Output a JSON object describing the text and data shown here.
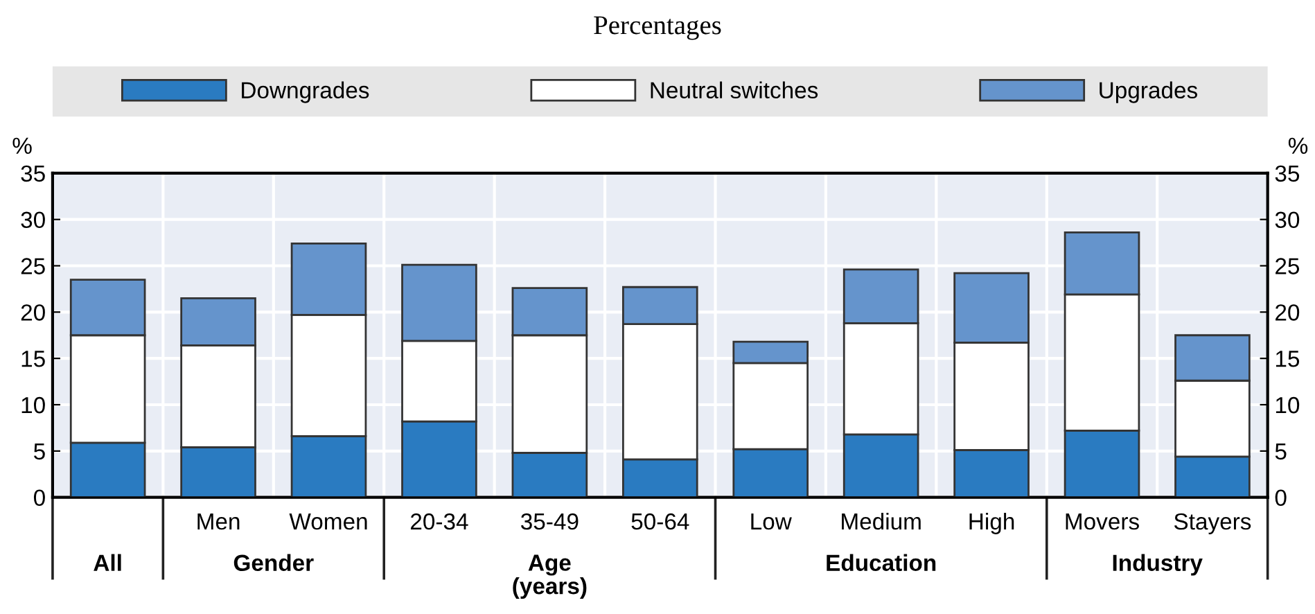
{
  "chart_data": {
    "type": "bar",
    "title": "Percentages",
    "stacked": true,
    "categories": [
      null,
      "Men",
      "Women",
      "20-34",
      "35-49",
      "50-64",
      "Low",
      "Medium",
      "High",
      "Movers",
      "Stayers"
    ],
    "series": [
      {
        "name": "Downgrades",
        "color": "#2a7bc1",
        "values": [
          5.9,
          5.4,
          6.6,
          8.2,
          4.8,
          4.1,
          5.2,
          6.8,
          5.1,
          7.2,
          4.4
        ]
      },
      {
        "name": "Neutral switches",
        "color": "#ffffff",
        "values": [
          11.6,
          11.0,
          13.1,
          8.7,
          12.7,
          14.6,
          9.3,
          12.0,
          11.6,
          14.7,
          8.2
        ]
      },
      {
        "name": "Upgrades",
        "color": "#6594cc",
        "values": [
          6.0,
          5.1,
          7.7,
          8.2,
          5.1,
          4.0,
          2.3,
          5.8,
          7.5,
          6.7,
          4.9
        ]
      }
    ],
    "annotations": [
      "All",
      "Gender",
      "Age\n(years)",
      "Education",
      "Industry"
    ],
    "ylabel": "%",
    "y2label": "%",
    "ylim": [
      0,
      35
    ],
    "yticks": [
      0,
      5,
      10,
      15,
      20,
      25,
      30,
      35
    ],
    "y2lim": [
      0,
      35
    ],
    "y2ticks": [
      0,
      5,
      10,
      15,
      20,
      25,
      30,
      35
    ],
    "grid": true,
    "legend": "top"
  }
}
